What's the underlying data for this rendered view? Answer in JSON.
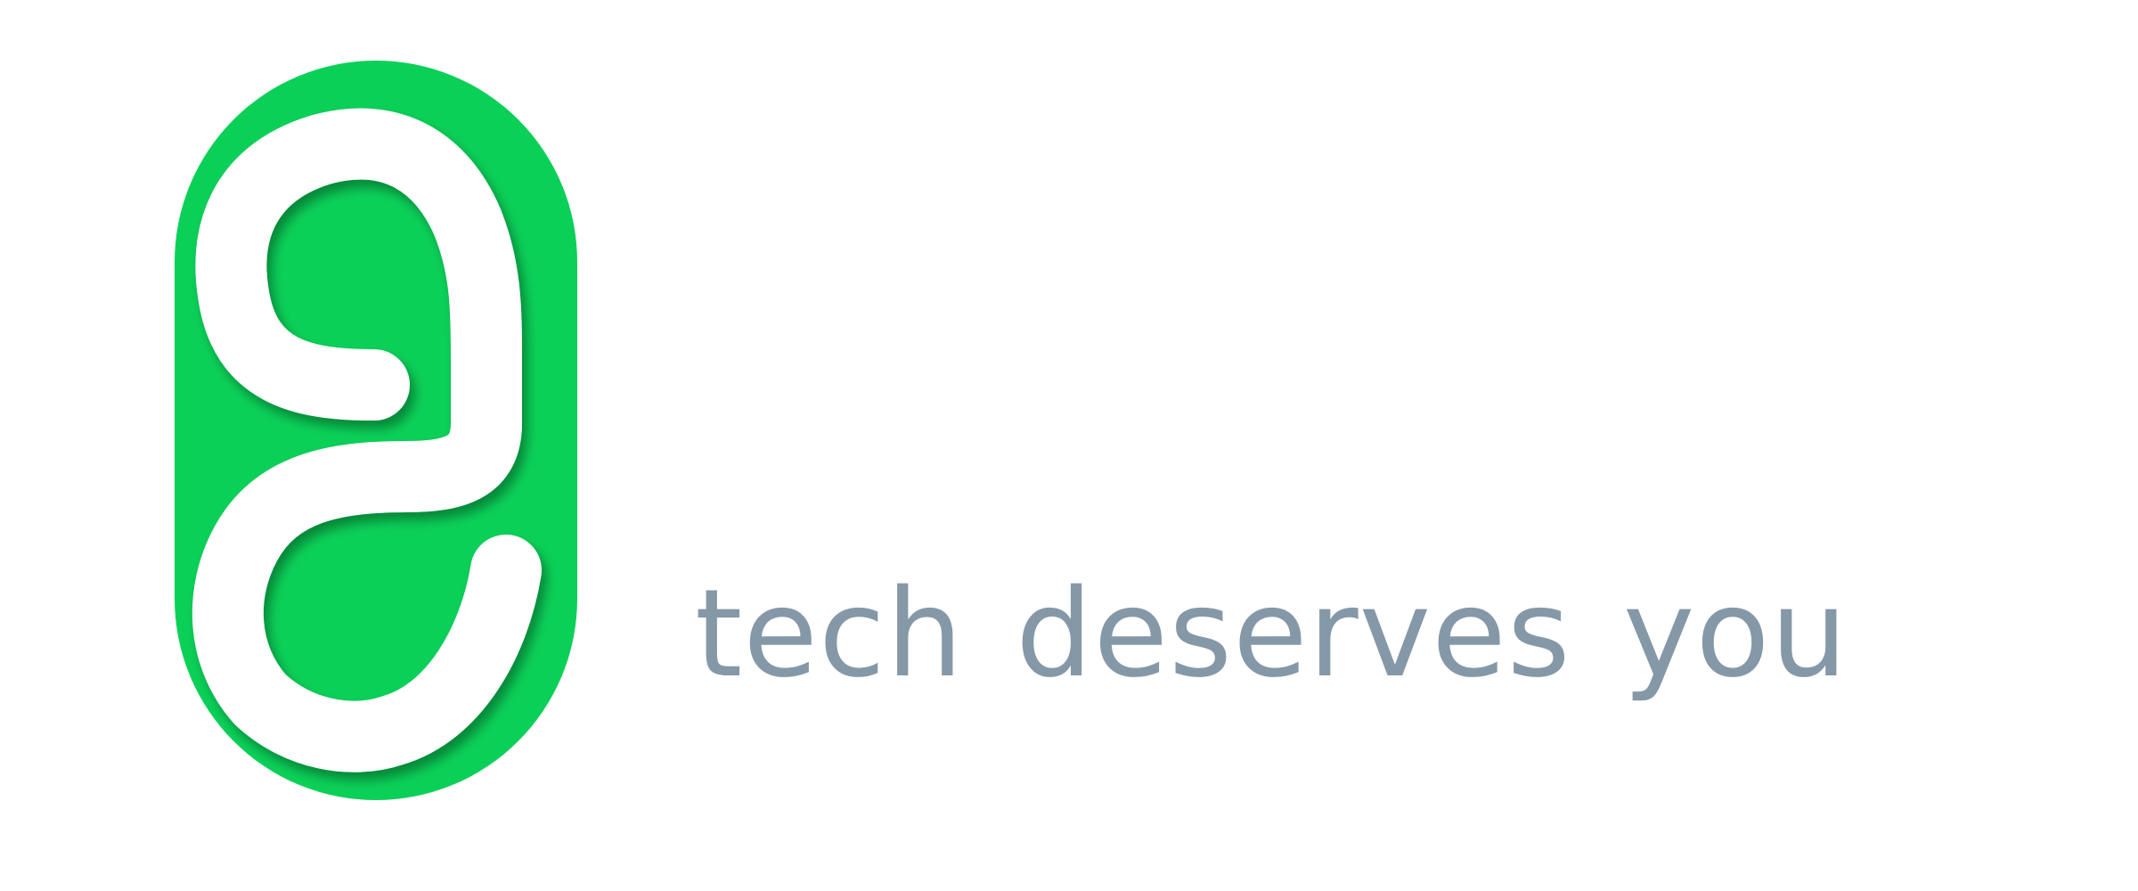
{
  "brand": {
    "name": "",
    "tagline": "tech deserves you",
    "logo_icon": "g-monogram-pill-icon",
    "colors": {
      "accent_green": "#0bd058",
      "monogram_white": "#ffffff",
      "tagline_gray": "#8598a8",
      "background": "#ffffff"
    }
  }
}
